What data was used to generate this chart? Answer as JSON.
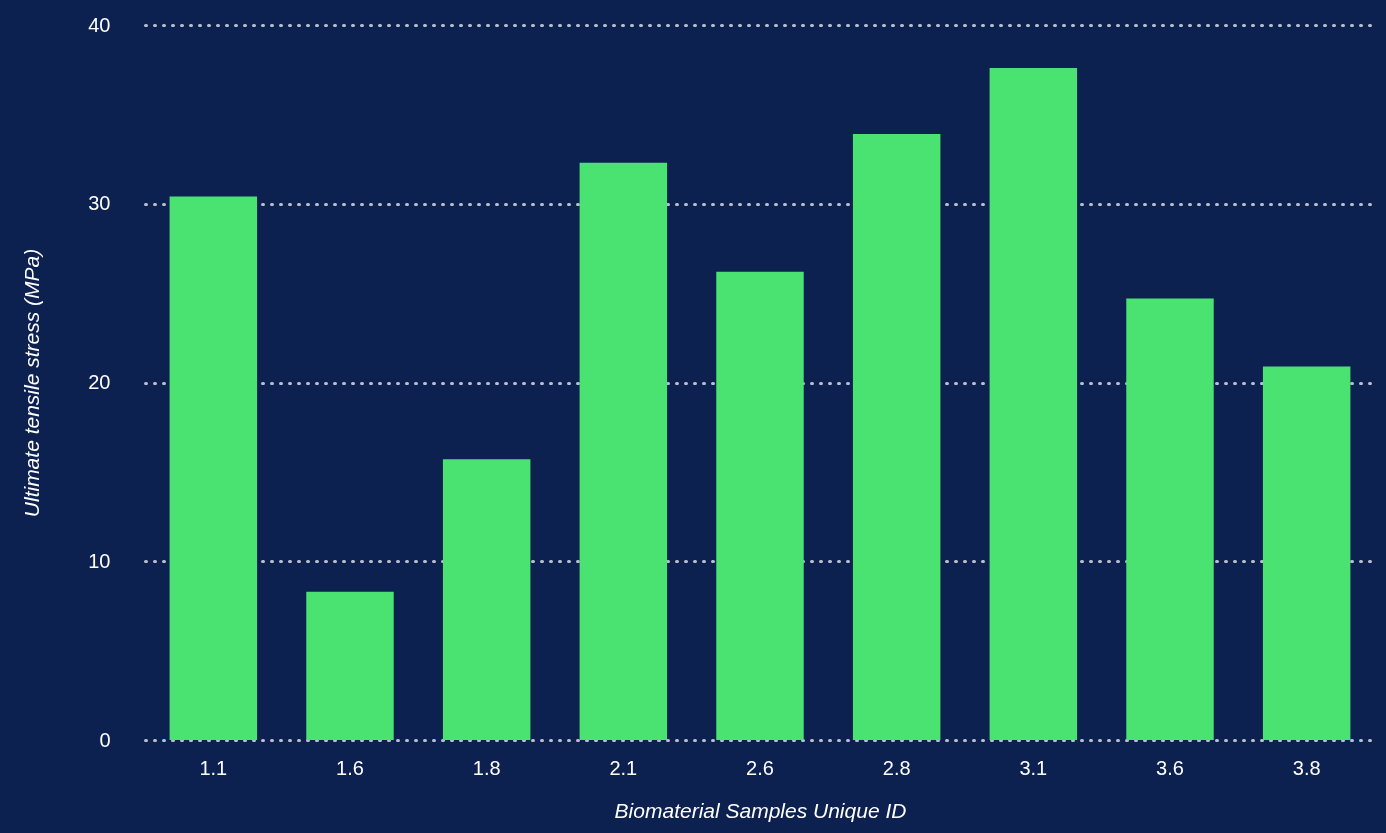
{
  "chart_data": {
    "type": "bar",
    "xlabel": "Biomaterial Samples Unique ID",
    "ylabel": "Ultimate tensile stress (MPa)",
    "categories": [
      "1.1",
      "1.6",
      "1.8",
      "2.1",
      "2.6",
      "2.8",
      "3.1",
      "3.6",
      "3.8"
    ],
    "values": [
      30.4,
      8.3,
      15.7,
      32.3,
      26.2,
      33.9,
      37.6,
      24.7,
      20.9
    ],
    "color": "#4ae371",
    "ylim": [
      0,
      40
    ],
    "yticks": [
      0,
      10,
      20,
      30,
      40
    ],
    "grid": "y"
  }
}
